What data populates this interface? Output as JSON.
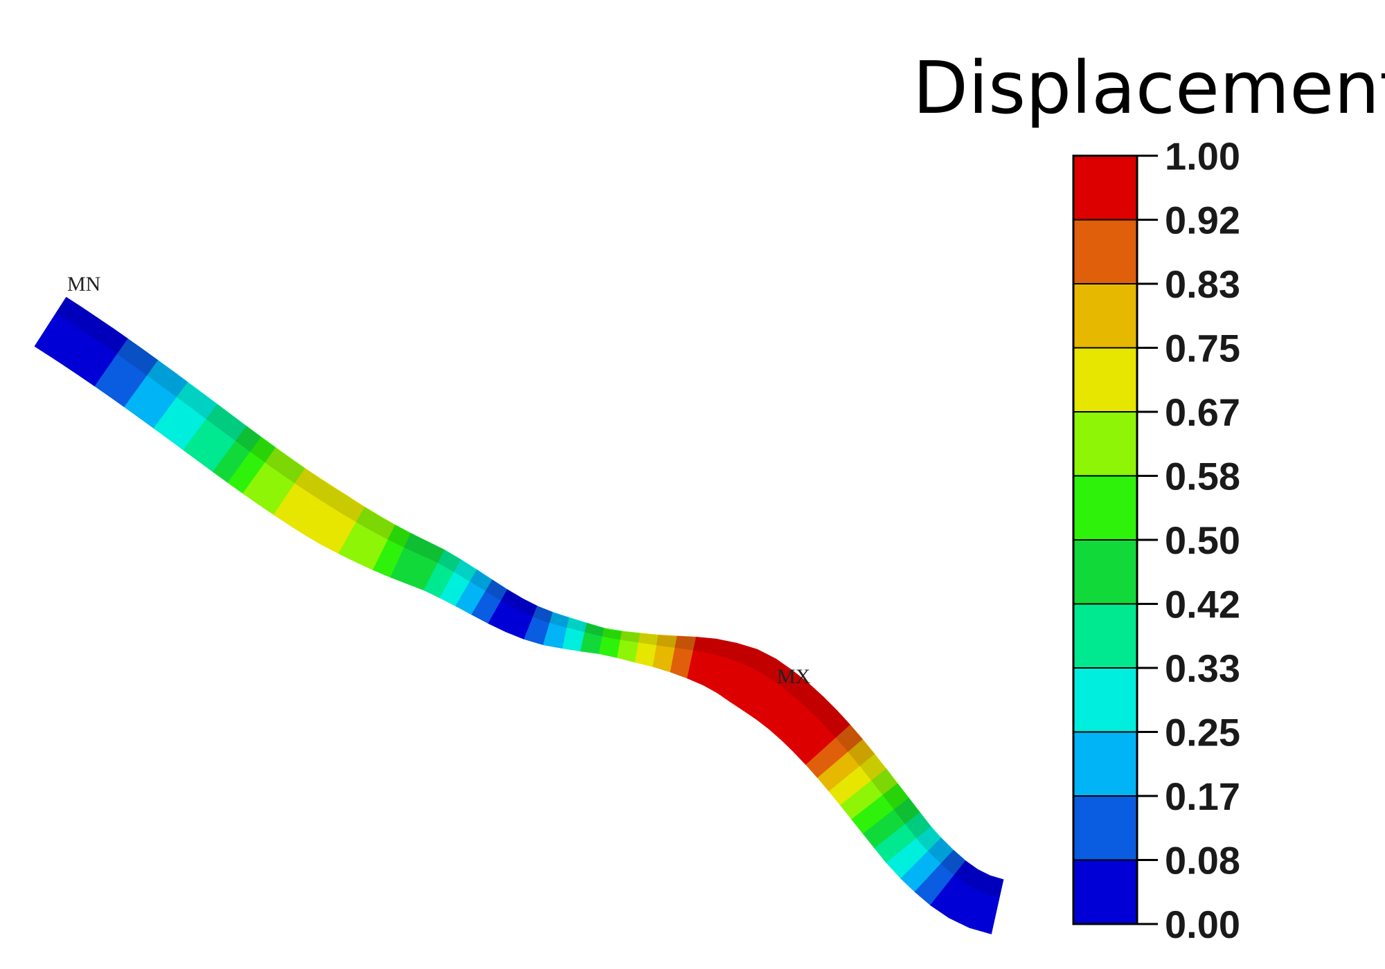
{
  "legend": {
    "title": "Displacement",
    "ticks": [
      "0.00",
      "0.08",
      "0.17",
      "0.25",
      "0.33",
      "0.42",
      "0.50",
      "0.58",
      "0.67",
      "0.75",
      "0.83",
      "0.92",
      "1.00"
    ],
    "band_colors": [
      "#0000d6",
      "#0a5ce0",
      "#00b4f5",
      "#00eedd",
      "#00e890",
      "#12d93a",
      "#2ef20a",
      "#8ef506",
      "#e6e600",
      "#e6b800",
      "#e05f0a",
      "#dd0000"
    ]
  },
  "markers": {
    "min_label": "MN",
    "max_label": "MX"
  }
}
